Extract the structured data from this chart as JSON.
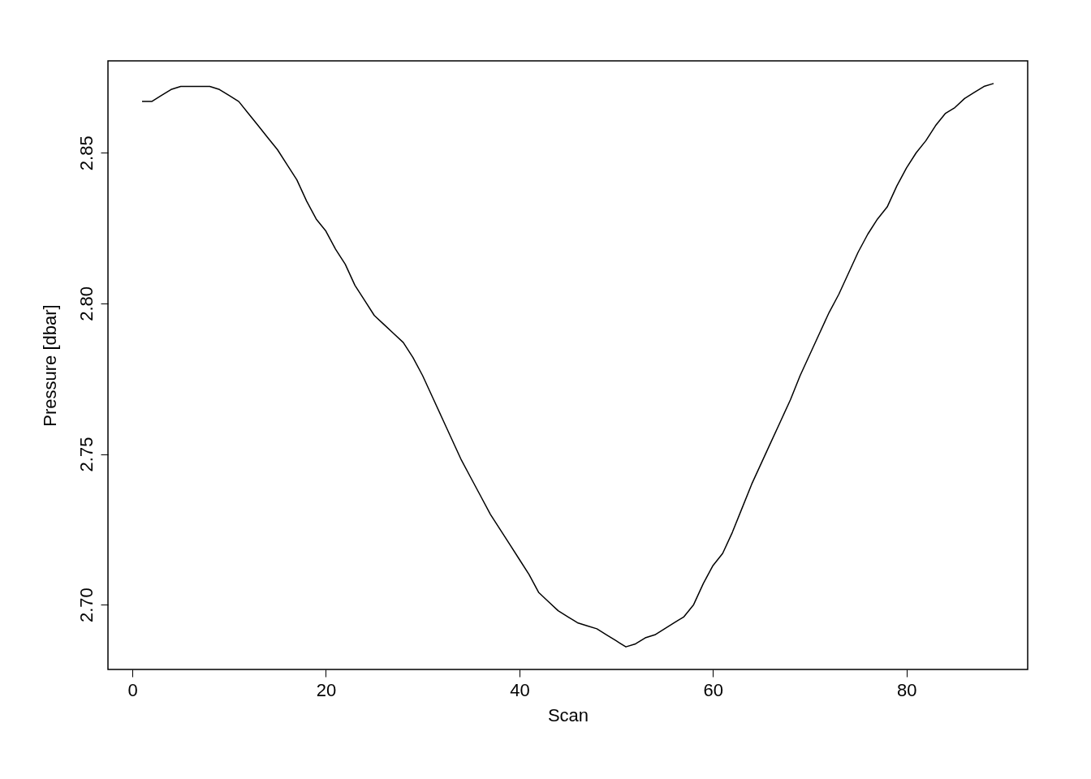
{
  "chart_data": {
    "type": "line",
    "xlabel": "Scan",
    "ylabel": "Pressure [dbar]",
    "x": [
      1,
      2,
      3,
      4,
      5,
      6,
      7,
      8,
      9,
      10,
      11,
      12,
      13,
      14,
      15,
      16,
      17,
      18,
      19,
      20,
      21,
      22,
      23,
      24,
      25,
      26,
      27,
      28,
      29,
      30,
      31,
      32,
      33,
      34,
      35,
      36,
      37,
      38,
      39,
      40,
      41,
      42,
      43,
      44,
      45,
      46,
      47,
      48,
      49,
      50,
      51,
      52,
      53,
      54,
      55,
      56,
      57,
      58,
      59,
      60,
      61,
      62,
      63,
      64,
      65,
      66,
      67,
      68,
      69,
      70,
      71,
      72,
      73,
      74,
      75,
      76,
      77,
      78,
      79,
      80,
      81,
      82,
      83,
      84,
      85,
      86,
      87,
      88,
      89
    ],
    "series": [
      {
        "color": "#000000",
        "values": [
          2.867,
          2.867,
          2.869,
          2.871,
          2.872,
          2.872,
          2.872,
          2.872,
          2.871,
          2.869,
          2.867,
          2.863,
          2.859,
          2.855,
          2.851,
          2.846,
          2.841,
          2.834,
          2.828,
          2.824,
          2.818,
          2.813,
          2.806,
          2.801,
          2.796,
          2.793,
          2.79,
          2.787,
          2.782,
          2.776,
          2.769,
          2.762,
          2.755,
          2.748,
          2.742,
          2.736,
          2.73,
          2.725,
          2.72,
          2.715,
          2.71,
          2.704,
          2.701,
          2.698,
          2.696,
          2.694,
          2.693,
          2.692,
          2.69,
          2.688,
          2.686,
          2.687,
          2.689,
          2.69,
          2.692,
          2.694,
          2.696,
          2.7,
          2.707,
          2.713,
          2.717,
          2.724,
          2.732,
          2.74,
          2.747,
          2.754,
          2.761,
          2.768,
          2.776,
          2.783,
          2.79,
          2.797,
          2.803,
          2.81,
          2.817,
          2.823,
          2.828,
          2.832,
          2.839,
          2.845,
          2.85,
          2.854,
          2.859,
          2.863,
          2.865,
          2.868,
          2.87,
          2.872,
          2.873
        ]
      }
    ],
    "xlim": [
      -2.52,
      92.52
    ],
    "ylim": [
      2.6785,
      2.8805
    ],
    "xticks": [
      0,
      20,
      40,
      60,
      80
    ],
    "yticks": [
      {
        "value": 2.7,
        "label": "2.70"
      },
      2.75,
      {
        "value": 2.8,
        "label": "2.80"
      },
      2.85
    ],
    "grid": false,
    "marker": "none",
    "line_style": "solid"
  }
}
